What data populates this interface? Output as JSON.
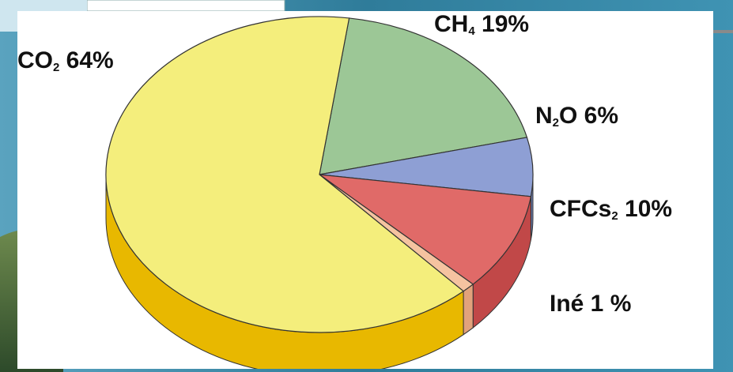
{
  "chart_data": {
    "type": "pie",
    "title": "",
    "three_d": true,
    "slices": [
      {
        "name": "CO2",
        "label_main": "CO",
        "label_sub": "2",
        "label_tail": " 64%",
        "value": 64,
        "color": "#f4ee7c",
        "side_color": "#e8b800"
      },
      {
        "name": "CH4",
        "label_main": "CH",
        "label_sub": "4",
        "label_tail": " 19%",
        "value": 19,
        "color": "#9cc796",
        "side_color": "#6e9e6a"
      },
      {
        "name": "N2O",
        "label_main": "N",
        "label_sub": "2",
        "label_tail": "O 6%",
        "value": 6,
        "color": "#8e9fd4",
        "side_color": "#6a78a8"
      },
      {
        "name": "CFCs",
        "label_main": "CFCs",
        "label_sub": "2",
        "label_tail": " 10%",
        "value": 10,
        "color": "#e06a68",
        "side_color": "#c14848"
      },
      {
        "name": "Iné",
        "label_main": "Iné 1 %",
        "label_sub": "",
        "label_tail": "",
        "value": 1,
        "color": "#f5c3a0",
        "side_color": "#e2a27c"
      }
    ]
  }
}
